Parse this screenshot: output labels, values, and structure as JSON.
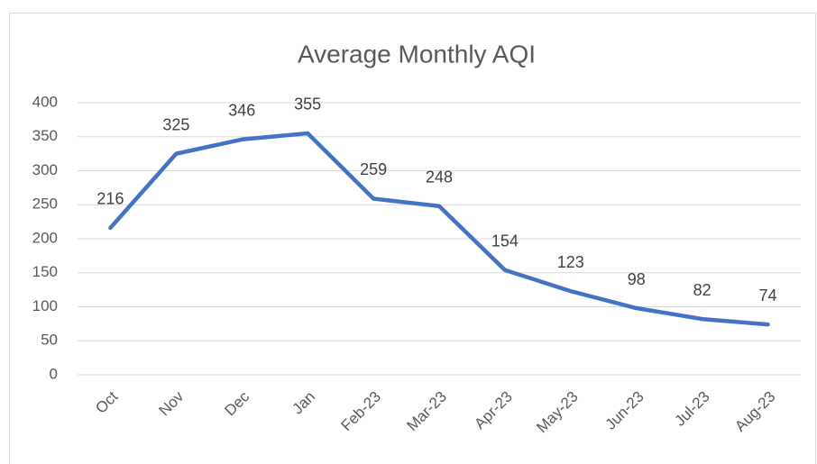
{
  "chart_data": {
    "type": "line",
    "title": "Average Monthly AQI",
    "categories": [
      "Oct",
      "Nov",
      "Dec",
      "Jan",
      "Feb-23",
      "Mar-23",
      "Apr-23",
      "May-23",
      "Jun-23",
      "Jul-23",
      "Aug-23"
    ],
    "values": [
      216,
      325,
      346,
      355,
      259,
      248,
      154,
      123,
      98,
      82,
      74
    ],
    "color": "#4472c4",
    "ylim": [
      0,
      400
    ],
    "yticks": [
      0,
      50,
      100,
      150,
      200,
      250,
      300,
      350,
      400
    ],
    "grid": true
  }
}
